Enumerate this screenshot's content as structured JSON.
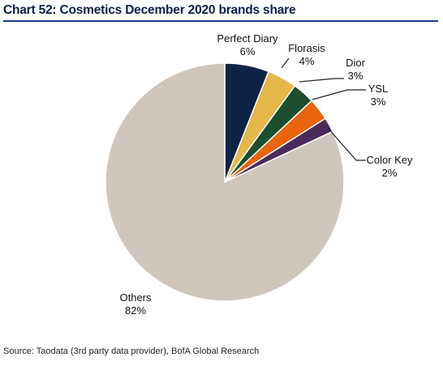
{
  "title": "Chart 52: Cosmetics December 2020 brands share",
  "source": "Source: Taodata (3rd party data provider), BofA Global Research",
  "chart_data": {
    "type": "pie",
    "title": "Chart 52: Cosmetics December 2020 brands share",
    "start": "12 o'clock, clockwise",
    "slices": [
      {
        "label": "Perfect Diary",
        "value": 6,
        "value_label": "6%",
        "color": "#0f2347"
      },
      {
        "label": "Florasis",
        "value": 4,
        "value_label": "4%",
        "color": "#e6b84a"
      },
      {
        "label": "Dior",
        "value": 3,
        "value_label": "3%",
        "color": "#1b4f30"
      },
      {
        "label": "YSL",
        "value": 3,
        "value_label": "3%",
        "color": "#e8650e"
      },
      {
        "label": "Color Key",
        "value": 2,
        "value_label": "2%",
        "color": "#4a2b58"
      },
      {
        "label": "Others",
        "value": 82,
        "value_label": "82%",
        "color": "#cfc6bd"
      }
    ]
  }
}
